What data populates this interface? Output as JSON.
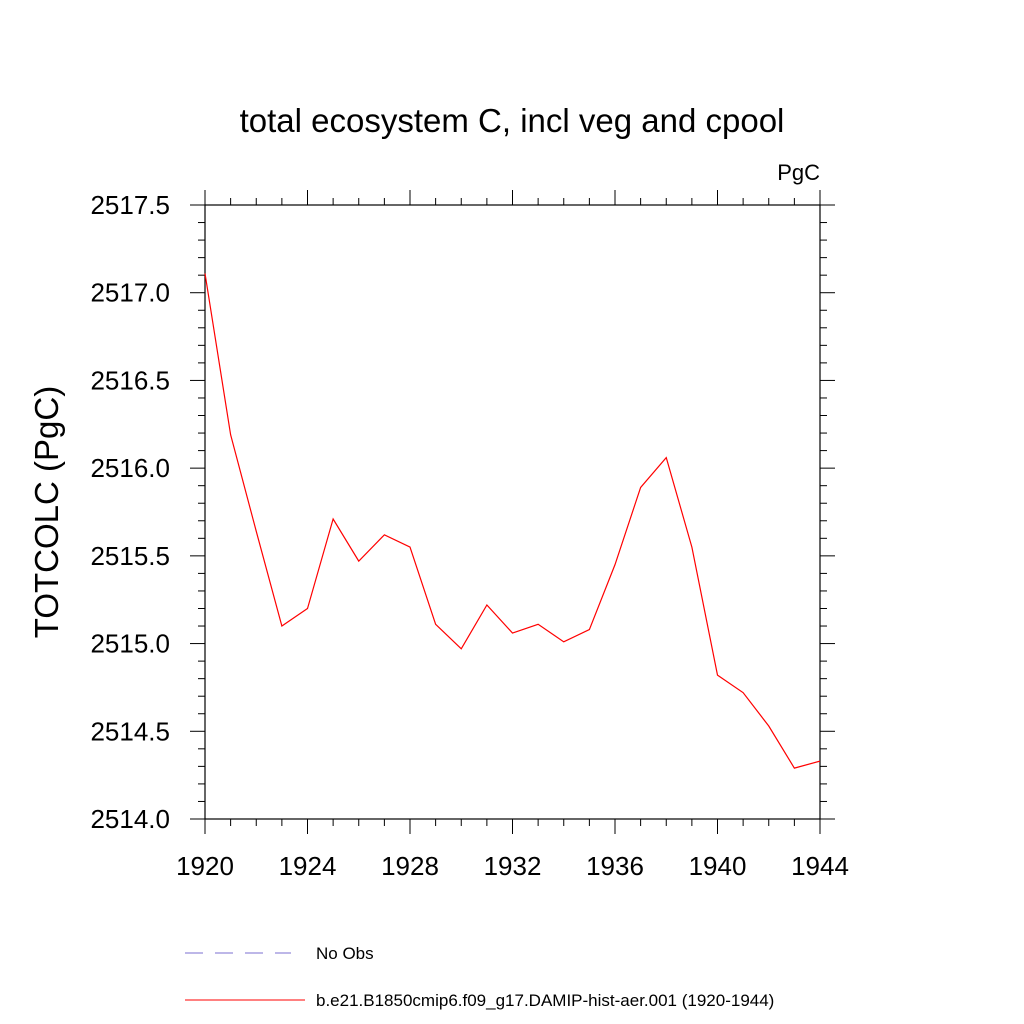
{
  "chart_data": {
    "type": "line",
    "title": "total ecosystem C, incl veg and cpool",
    "units_label": "PgC",
    "ylabel": "TOTCOLC  (PgC)",
    "xlabel": "",
    "xlim": [
      1920,
      1944
    ],
    "ylim": [
      2514.0,
      2517.5
    ],
    "x_ticks": [
      1920,
      1924,
      1928,
      1932,
      1936,
      1940,
      1944
    ],
    "x_tick_labels": [
      "1920",
      "1924",
      "1928",
      "1932",
      "1936",
      "1940",
      "1944"
    ],
    "y_ticks": [
      2514.0,
      2514.5,
      2515.0,
      2515.5,
      2516.0,
      2516.5,
      2517.0,
      2517.5
    ],
    "y_tick_labels": [
      "2514.0",
      "2514.5",
      "2515.0",
      "2515.5",
      "2516.0",
      "2516.5",
      "2517.0",
      "2517.5"
    ],
    "grid": false,
    "legend_position": "bottom",
    "series": [
      {
        "name": "b.e21.B1850cmip6.f09_g17.DAMIP-hist-aer.001 (1920-1944)",
        "color": "#ff0000",
        "style": "solid",
        "x": [
          1920,
          1921,
          1922,
          1923,
          1924,
          1925,
          1926,
          1927,
          1928,
          1929,
          1930,
          1931,
          1932,
          1933,
          1934,
          1935,
          1936,
          1937,
          1938,
          1939,
          1940,
          1941,
          1942,
          1943,
          1944
        ],
        "y": [
          2517.11,
          2516.19,
          2515.64,
          2515.1,
          2515.2,
          2515.71,
          2515.47,
          2515.62,
          2515.55,
          2515.11,
          2514.97,
          2515.22,
          2515.06,
          2515.11,
          2515.01,
          2515.08,
          2515.45,
          2515.89,
          2516.06,
          2515.55,
          2514.82,
          2514.72,
          2514.53,
          2514.29,
          2514.33
        ]
      }
    ],
    "legend": [
      {
        "label": "No Obs",
        "color": "#7b6fd0",
        "style": "dashed"
      },
      {
        "label": "b.e21.B1850cmip6.f09_g17.DAMIP-hist-aer.001 (1920-1944)",
        "color": "#ff0000",
        "style": "solid"
      }
    ]
  }
}
